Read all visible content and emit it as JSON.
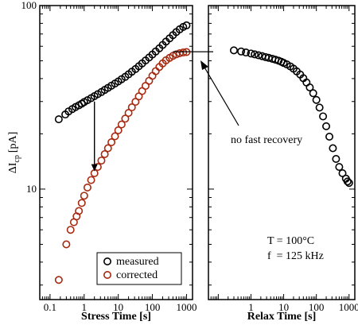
{
  "chart_data": [
    {
      "type": "scatter",
      "panel": "stress",
      "xlabel": "Stress Time [s]",
      "ylabel_main": "ΔI",
      "ylabel_sub": "cp",
      "ylabel_unit": "[pA]",
      "xscale": "log",
      "yscale": "log",
      "xlim": [
        0.05,
        1500
      ],
      "ylim": [
        2.5,
        100
      ],
      "x_ticks": [
        0.1,
        1,
        10,
        100,
        1000
      ],
      "x_tick_labels": [
        "0.1",
        "1",
        "10",
        "100",
        "1000"
      ],
      "y_ticks": [
        10,
        100
      ],
      "y_tick_labels": [
        "10",
        "100"
      ],
      "legend": {
        "position": "bottom-right",
        "entries": [
          "measured",
          "corrected"
        ]
      },
      "series": [
        {
          "name": "measured",
          "color": "#000000",
          "x": [
            0.18,
            0.28,
            0.35,
            0.45,
            0.56,
            0.7,
            0.85,
            1.0,
            1.25,
            1.6,
            2.0,
            2.5,
            3.2,
            4.0,
            5.0,
            6.3,
            8.0,
            10,
            12.5,
            16,
            20,
            25,
            32,
            40,
            50,
            63,
            80,
            100,
            125,
            160,
            200,
            250,
            320,
            400,
            500,
            630,
            800,
            1000
          ],
          "y": [
            24,
            25.5,
            26.5,
            27.3,
            28,
            28.6,
            29.2,
            29.8,
            30.5,
            31.3,
            32.1,
            32.9,
            33.8,
            34.7,
            35.6,
            36.6,
            37.6,
            38.6,
            39.7,
            40.9,
            42.2,
            43.6,
            45.1,
            46.7,
            48.4,
            50.2,
            52.1,
            54.1,
            56.2,
            58.5,
            61,
            63.6,
            66.3,
            69,
            71.7,
            74.2,
            76.5,
            78
          ]
        },
        {
          "name": "corrected",
          "color": "#a52a10",
          "x": [
            0.18,
            0.3,
            0.4,
            0.5,
            0.6,
            0.7,
            0.85,
            1.0,
            1.25,
            1.6,
            2.0,
            2.5,
            3.2,
            4.0,
            5.0,
            6.3,
            8.0,
            10,
            12.5,
            16,
            20,
            25,
            32,
            40,
            50,
            63,
            80,
            100,
            125,
            160,
            200,
            250,
            320,
            400,
            500,
            630,
            800,
            1000
          ],
          "y": [
            3.2,
            5.0,
            6.0,
            6.6,
            7.1,
            7.6,
            8.4,
            9.2,
            10.2,
            11.2,
            12.2,
            13.2,
            14.3,
            15.5,
            16.7,
            18.0,
            19.4,
            20.9,
            22.5,
            24.2,
            26.0,
            27.9,
            29.9,
            32.0,
            34.2,
            36.5,
            38.9,
            41.4,
            43.9,
            46.3,
            48.4,
            50.3,
            51.9,
            53.2,
            54.2,
            55.0,
            55.5,
            55.8
          ]
        }
      ],
      "annotations": {
        "down_arrow": {
          "x": 2.0,
          "y_from": 30,
          "y_to": 12.5
        },
        "reference_line": {
          "x_from": 400,
          "x_to": 1500,
          "y": 56
        }
      }
    },
    {
      "type": "scatter",
      "panel": "relax",
      "xlabel": "Relax Time [s]",
      "xscale": "log",
      "yscale": "log",
      "xlim": [
        0.05,
        1500
      ],
      "ylim": [
        2.5,
        100
      ],
      "x_ticks": [
        1,
        10,
        100,
        1000
      ],
      "x_tick_labels": [
        "1",
        "10",
        "100",
        "1000"
      ],
      "annotation_text": "no fast recovery",
      "conditions": [
        "T = 100°C",
        "f  = 125 kHz"
      ],
      "series": [
        {
          "name": "",
          "color": "#000000",
          "x": [
            0.3,
            0.5,
            0.7,
            1.0,
            1.3,
            1.7,
            2.2,
            2.8,
            3.5,
            4.5,
            5.6,
            7.0,
            8.5,
            10,
            12.5,
            16,
            20,
            25,
            32,
            40,
            50,
            63,
            80,
            100,
            125,
            160,
            200,
            250,
            320,
            400,
            500,
            630,
            800,
            900,
            1000
          ],
          "y": [
            57,
            56.2,
            55.5,
            54.8,
            54.2,
            53.6,
            53,
            52.4,
            51.9,
            51.3,
            50.7,
            50.1,
            49.4,
            48.7,
            47.8,
            46.6,
            45.3,
            43.8,
            42.1,
            40.2,
            38.1,
            35.8,
            33.3,
            30.6,
            27.8,
            24.9,
            22.0,
            19.3,
            16.7,
            14.6,
            13.2,
            12.2,
            11.4,
            11.0,
            10.8
          ]
        }
      ]
    }
  ]
}
